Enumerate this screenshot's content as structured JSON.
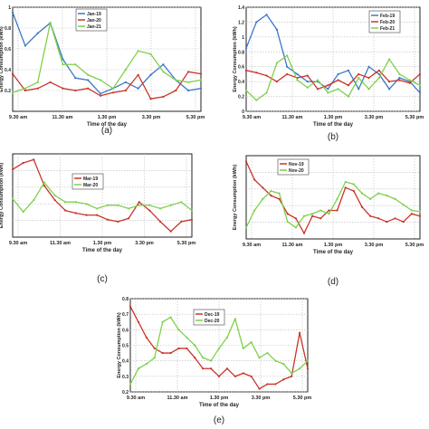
{
  "chart_data": [
    {
      "panel_label": "(a)",
      "type": "line",
      "xlabel": "Time of the day",
      "ylabel": "Energy Consumption (kWh)",
      "x_ticks": [
        "9.30 am",
        "11.30 am",
        "1.30 pm",
        "3.30 pm",
        "5.30 pm"
      ],
      "ylim": [
        0,
        1
      ],
      "y_ticks": [
        0.2,
        0.4,
        0.6,
        0.8,
        1
      ],
      "legend_position": "top-center",
      "grid": true,
      "series": [
        {
          "name": "Jan-19",
          "color": "#3a78c8",
          "values": [
            0.95,
            0.63,
            0.75,
            0.85,
            0.5,
            0.32,
            0.3,
            0.17,
            0.22,
            0.28,
            0.22,
            0.35,
            0.45,
            0.3,
            0.2,
            0.22
          ]
        },
        {
          "name": "Jan-20",
          "color": "#c8352a",
          "values": [
            0.36,
            0.2,
            0.22,
            0.28,
            0.22,
            0.2,
            0.22,
            0.15,
            0.18,
            0.2,
            0.35,
            0.12,
            0.14,
            0.2,
            0.38,
            0.36
          ]
        },
        {
          "name": "Jan-21",
          "color": "#7ed14a",
          "values": [
            0.18,
            0.22,
            0.28,
            0.85,
            0.45,
            0.45,
            0.35,
            0.3,
            0.22,
            0.4,
            0.58,
            0.55,
            0.38,
            0.3,
            0.28,
            0.3
          ]
        }
      ]
    },
    {
      "panel_label": "(b)",
      "type": "line",
      "xlabel": "Time of the day",
      "ylabel": "Energy Consumption (kWh)",
      "x_ticks": [
        "9.30 am",
        "11.30 am",
        "1.30 pm",
        "3.30 pm",
        "5.30 pm"
      ],
      "ylim": [
        0,
        1.4
      ],
      "y_ticks": [
        0,
        0.2,
        0.4,
        0.6,
        0.8,
        1,
        1.2,
        1.4
      ],
      "legend_position": "top-right",
      "grid": true,
      "series": [
        {
          "name": "Feb-19",
          "color": "#3a78c8",
          "values": [
            0.85,
            1.2,
            1.3,
            1.1,
            0.6,
            0.5,
            0.4,
            0.4,
            0.3,
            0.5,
            0.55,
            0.3,
            0.6,
            0.5,
            0.3,
            0.45,
            0.4,
            0.25
          ]
        },
        {
          "name": "Feb-20",
          "color": "#c8352a",
          "values": [
            0.55,
            0.52,
            0.48,
            0.4,
            0.5,
            0.45,
            0.48,
            0.3,
            0.35,
            0.42,
            0.35,
            0.5,
            0.45,
            0.55,
            0.4,
            0.42,
            0.38,
            0.5
          ]
        },
        {
          "name": "Feb-21",
          "color": "#7ed14a",
          "values": [
            0.28,
            0.15,
            0.25,
            0.65,
            0.75,
            0.42,
            0.32,
            0.42,
            0.25,
            0.3,
            0.2,
            0.45,
            0.3,
            0.45,
            0.7,
            0.5,
            0.42,
            0.35
          ]
        }
      ]
    },
    {
      "panel_label": "(c)",
      "type": "line",
      "xlabel": "Time of the day",
      "ylabel": "Energy Consumption (kWh)",
      "x_ticks": [
        "9.30 am",
        "11.30 am",
        "1.30 pm",
        "3.30 pm",
        "5.30 pm"
      ],
      "legend_position": "top-center",
      "grid": true,
      "series": [
        {
          "name": "Mar-19",
          "color": "#c8352a",
          "values": [
            1.25,
            1.35,
            1.4,
            1.0,
            0.78,
            0.62,
            0.58,
            0.55,
            0.55,
            0.48,
            0.45,
            0.5,
            0.75,
            0.62,
            0.45,
            0.3,
            0.45,
            0.48
          ]
        },
        {
          "name": "Mar-20",
          "color": "#7ed14a",
          "values": [
            0.8,
            0.6,
            0.78,
            1.05,
            0.85,
            0.75,
            0.75,
            0.72,
            0.65,
            0.7,
            0.7,
            0.65,
            0.7,
            0.7,
            0.65,
            0.7,
            0.75,
            0.62
          ]
        }
      ]
    },
    {
      "panel_label": "(d)",
      "type": "line",
      "xlabel": "Time of the day",
      "ylabel": "Energy Consumption (kWh)",
      "x_ticks": [
        "9.30 am",
        "11.30 am",
        "1.30 pm",
        "3.30 pm",
        "5.30 pm"
      ],
      "legend_position": "top-left",
      "grid": true,
      "series": [
        {
          "name": "Nov-19",
          "color": "#c8352a",
          "values": [
            0.88,
            0.72,
            0.65,
            0.58,
            0.55,
            0.42,
            0.38,
            0.25,
            0.4,
            0.38,
            0.45,
            0.45,
            0.65,
            0.62,
            0.48,
            0.4,
            0.38,
            0.35,
            0.38,
            0.35,
            0.42,
            0.4
          ]
        },
        {
          "name": "Nov-20",
          "color": "#7ed14a",
          "values": [
            0.3,
            0.45,
            0.55,
            0.62,
            0.6,
            0.35,
            0.3,
            0.4,
            0.42,
            0.45,
            0.42,
            0.55,
            0.7,
            0.68,
            0.6,
            0.55,
            0.6,
            0.58,
            0.55,
            0.5,
            0.45,
            0.44
          ]
        }
      ]
    },
    {
      "panel_label": "(e)",
      "type": "line",
      "xlabel": "Time of the day",
      "ylabel": "Energy Consumption (kWh)",
      "x_ticks": [
        "9.30 am",
        "11.30 am",
        "1.30 pm",
        "3.30 pm",
        "5.30 pm"
      ],
      "ylim": [
        0.2,
        0.8
      ],
      "y_ticks": [
        0.2,
        0.3,
        0.4,
        0.5,
        0.6,
        0.7,
        0.8
      ],
      "legend_position": "top-center",
      "grid": true,
      "series": [
        {
          "name": "Dec-19",
          "color": "#c8352a",
          "values": [
            0.75,
            0.65,
            0.55,
            0.48,
            0.45,
            0.45,
            0.48,
            0.48,
            0.42,
            0.35,
            0.35,
            0.3,
            0.35,
            0.3,
            0.32,
            0.3,
            0.22,
            0.25,
            0.25,
            0.28,
            0.3,
            0.58,
            0.35
          ]
        },
        {
          "name": "Dec-20",
          "color": "#7ed14a",
          "values": [
            0.25,
            0.35,
            0.38,
            0.42,
            0.65,
            0.68,
            0.6,
            0.55,
            0.5,
            0.42,
            0.4,
            0.48,
            0.55,
            0.67,
            0.48,
            0.52,
            0.42,
            0.45,
            0.4,
            0.38,
            0.32,
            0.35,
            0.4
          ]
        }
      ]
    }
  ]
}
